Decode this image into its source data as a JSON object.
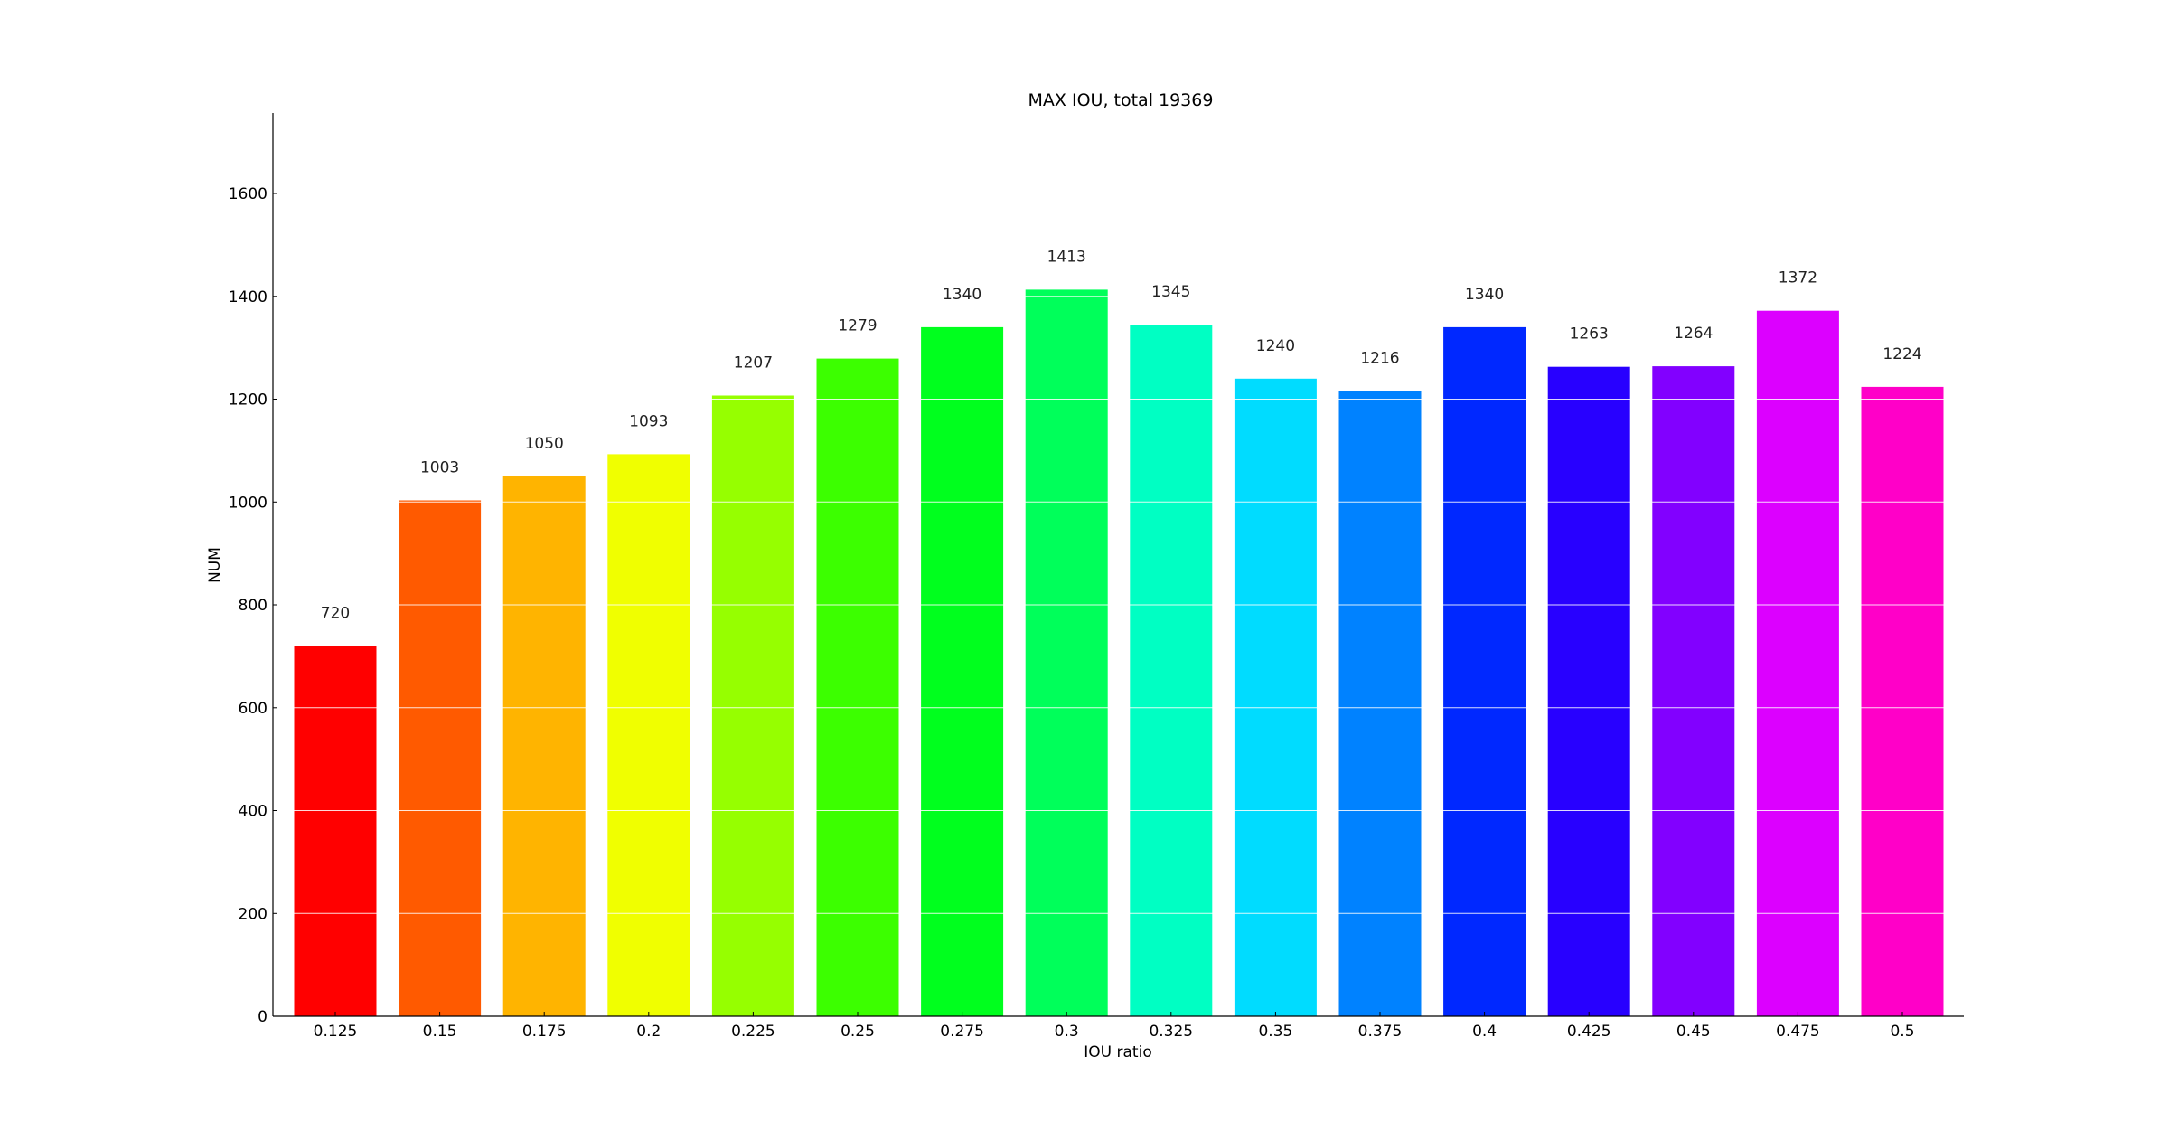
{
  "chart_data": {
    "type": "bar",
    "title": "MAX IOU, total 19369",
    "xlabel": "IOU ratio",
    "ylabel": "NUM",
    "categories": [
      "0.125",
      "0.15",
      "0.175",
      "0.2",
      "0.225",
      "0.25",
      "0.275",
      "0.3",
      "0.325",
      "0.35",
      "0.375",
      "0.4",
      "0.425",
      "0.45",
      "0.475",
      "0.5"
    ],
    "values": [
      720,
      1003,
      1050,
      1093,
      1207,
      1279,
      1340,
      1413,
      1345,
      1240,
      1216,
      1340,
      1263,
      1264,
      1372,
      1224
    ],
    "value_labels": [
      "720",
      "1003",
      "1050",
      "1093",
      "1207",
      "1279",
      "1340",
      "1413",
      "1345",
      "1240",
      "1216",
      "1340",
      "1263",
      "1264",
      "1372",
      "1224"
    ],
    "colors": [
      "#ff0000",
      "#ff5a00",
      "#ffb400",
      "#f0ff00",
      "#96ff00",
      "#3cff00",
      "#00ff1e",
      "#00ff5a",
      "#00ffc3",
      "#00dcff",
      "#0082ff",
      "#0028ff",
      "#2800ff",
      "#8200ff",
      "#dc00ff",
      "#ff00c8"
    ],
    "yticks": [
      0,
      200,
      400,
      600,
      800,
      1000,
      1200,
      1400,
      1600
    ],
    "ytick_labels": [
      "0",
      "200",
      "400",
      "600",
      "800",
      "1000",
      "1200",
      "1400",
      "1600"
    ],
    "ylim": [
      0,
      1766
    ],
    "grid": true,
    "grid_color": "#ffffff",
    "legend": "none"
  }
}
